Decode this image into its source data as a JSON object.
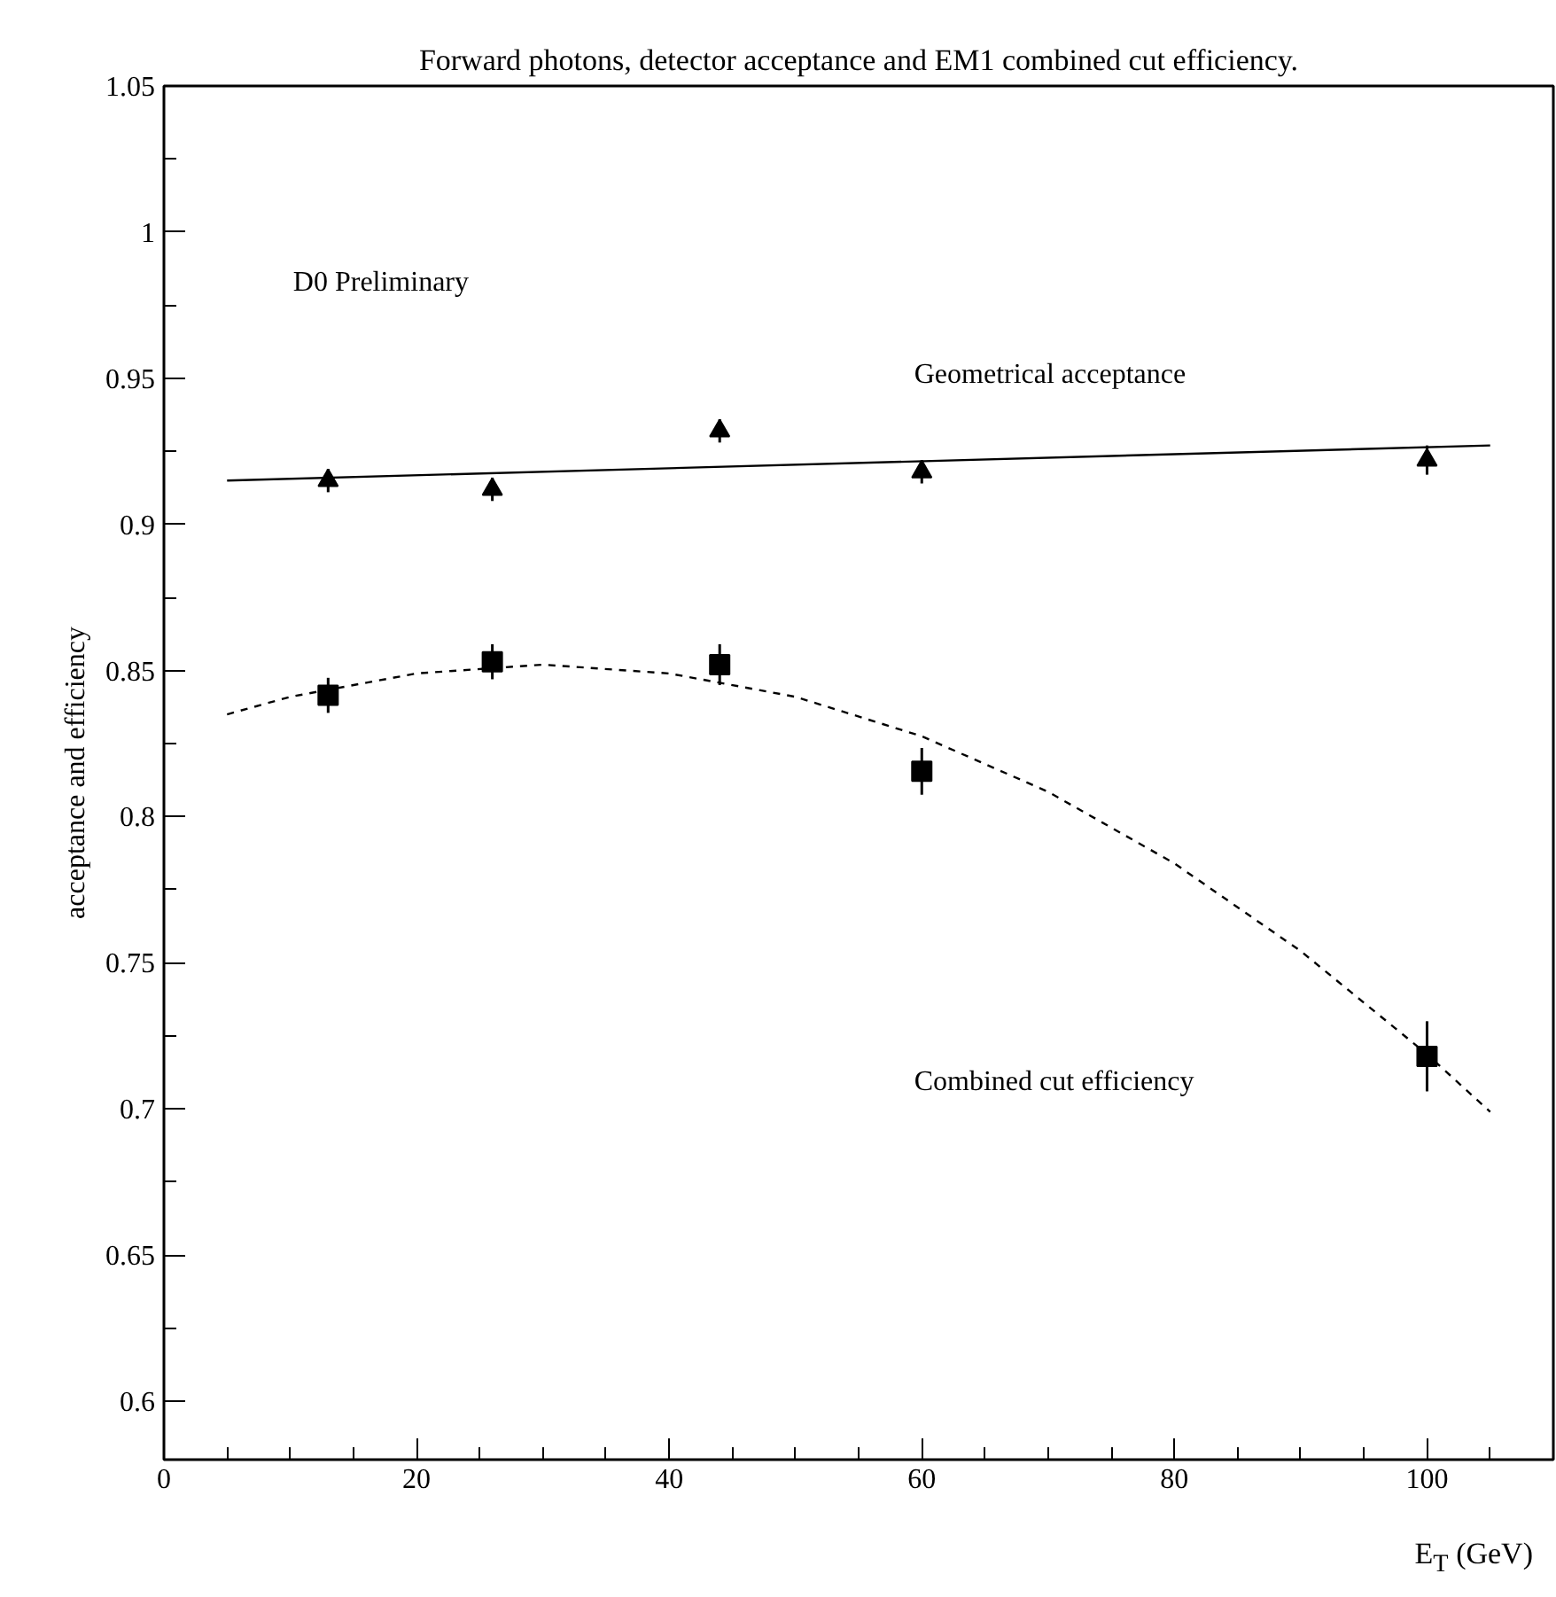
{
  "chart_data": {
    "type": "scatter",
    "title": "Forward photons, detector acceptance and EM1 combined cut efficiency.",
    "xlabel": "E$_{T}$ (GeV)",
    "ylabel": "acceptance and efficiency",
    "xlim": [
      0,
      110
    ],
    "ylim": [
      0.58,
      1.05
    ],
    "xticks": [
      0,
      {
        "value": 5,
        "label": null
      },
      {
        "value": 10,
        "label": null
      },
      {
        "value": 15,
        "label": null
      },
      20,
      {
        "value": 25,
        "label": null
      },
      {
        "value": 30,
        "label": null
      },
      {
        "value": 35,
        "label": null
      },
      40,
      {
        "value": 45,
        "label": null
      },
      {
        "value": 50,
        "label": null
      },
      {
        "value": 55,
        "label": null
      },
      60,
      {
        "value": 65,
        "label": null
      },
      {
        "value": 70,
        "label": null
      },
      {
        "value": 75,
        "label": null
      },
      80,
      {
        "value": 85,
        "label": null
      },
      {
        "value": 90,
        "label": null
      },
      {
        "value": 95,
        "label": null
      },
      100,
      {
        "value": 105,
        "label": null
      }
    ],
    "yticks": [
      0.6,
      {
        "value": 0.625,
        "label": null
      },
      0.65,
      {
        "value": 0.675,
        "label": null
      },
      0.7,
      {
        "value": 0.725,
        "label": null
      },
      0.75,
      {
        "value": 0.775,
        "label": null
      },
      0.8,
      {
        "value": 0.825,
        "label": null
      },
      0.85,
      {
        "value": 0.875,
        "label": null
      },
      0.9,
      {
        "value": 0.925,
        "label": null
      },
      0.95,
      {
        "value": 0.975,
        "label": null
      },
      1,
      {
        "value": 1.025,
        "label": null
      },
      1.05
    ],
    "grid": false,
    "series": [
      {
        "marker": "triangle",
        "color": "#000000",
        "x": [
          13,
          26,
          44,
          60,
          100
        ],
        "values": [
          0.915,
          0.912,
          0.932,
          0.918,
          0.922
        ],
        "errors": [
          0.004,
          0.004,
          0.004,
          0.004,
          0.005
        ]
      },
      {
        "marker": "square",
        "color": "#000000",
        "x": [
          13,
          26,
          44,
          60,
          100
        ],
        "values": [
          0.8415,
          0.853,
          0.852,
          0.8155,
          0.718
        ],
        "errors": [
          0.006,
          0.006,
          0.007,
          0.008,
          0.012
        ]
      },
      {
        "type": "line",
        "marker": "none",
        "line_style": "solid",
        "color": "#000000",
        "x": [
          5,
          105
        ],
        "values": [
          0.915,
          0.927
        ]
      },
      {
        "type": "line",
        "marker": "none",
        "line_style": "dashed",
        "color": "#000000",
        "x": [
          5,
          10,
          20,
          30,
          40,
          50,
          60,
          70,
          80,
          90,
          100,
          105
        ],
        "values": [
          0.835,
          0.841,
          0.849,
          0.852,
          0.849,
          0.841,
          0.8275,
          0.8085,
          0.784,
          0.754,
          0.7187,
          0.699
        ]
      }
    ],
    "annotations": [
      "D0 Preliminary",
      "Geometrical acceptance",
      "Combined cut efficiency"
    ]
  }
}
